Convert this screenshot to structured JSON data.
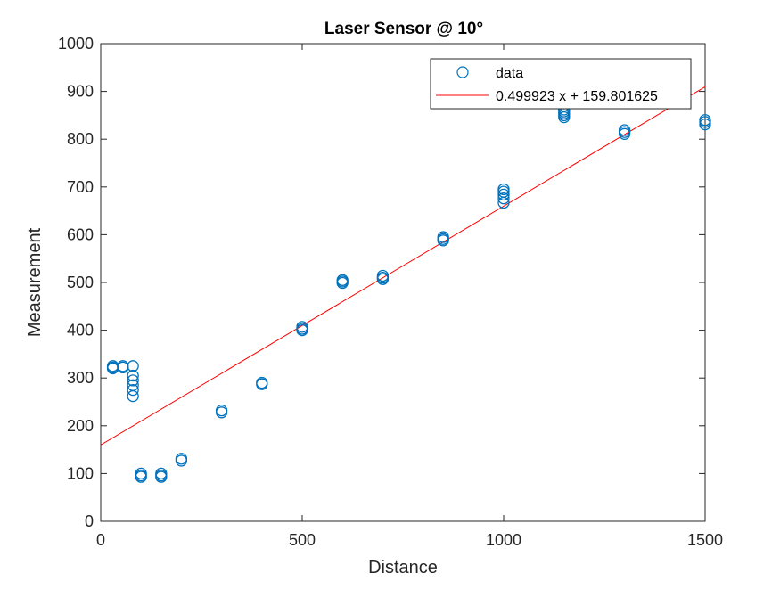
{
  "chart_data": {
    "type": "scatter",
    "title": "Laser Sensor @ 10°",
    "xlabel": "Distance",
    "ylabel": "Measurement",
    "xlim": [
      0,
      1500
    ],
    "ylim": [
      0,
      1000
    ],
    "xticks": [
      0,
      500,
      1000,
      1500
    ],
    "yticks": [
      0,
      100,
      200,
      300,
      400,
      500,
      600,
      700,
      800,
      900,
      1000
    ],
    "grid": false,
    "legend_position": "top-right",
    "series": [
      {
        "name": "data",
        "type": "scatter",
        "marker": "circle-open",
        "color": "#0072BD",
        "points": [
          [
            30,
            325
          ],
          [
            30,
            322
          ],
          [
            30,
            320
          ],
          [
            55,
            325
          ],
          [
            55,
            322
          ],
          [
            80,
            325
          ],
          [
            80,
            305
          ],
          [
            80,
            295
          ],
          [
            80,
            285
          ],
          [
            80,
            275
          ],
          [
            80,
            262
          ],
          [
            100,
            100
          ],
          [
            100,
            96
          ],
          [
            100,
            93
          ],
          [
            150,
            100
          ],
          [
            150,
            96
          ],
          [
            150,
            93
          ],
          [
            200,
            131
          ],
          [
            200,
            127
          ],
          [
            300,
            232
          ],
          [
            300,
            228
          ],
          [
            400,
            290
          ],
          [
            400,
            287
          ],
          [
            500,
            407
          ],
          [
            500,
            403
          ],
          [
            500,
            400
          ],
          [
            600,
            505
          ],
          [
            600,
            502
          ],
          [
            600,
            499
          ],
          [
            700,
            514
          ],
          [
            700,
            510
          ],
          [
            700,
            507
          ],
          [
            850,
            595
          ],
          [
            850,
            591
          ],
          [
            850,
            588
          ],
          [
            1000,
            695
          ],
          [
            1000,
            690
          ],
          [
            1000,
            684
          ],
          [
            1000,
            676
          ],
          [
            1000,
            667
          ],
          [
            1150,
            862
          ],
          [
            1150,
            858
          ],
          [
            1150,
            854
          ],
          [
            1150,
            850
          ],
          [
            1150,
            846
          ],
          [
            1300,
            819
          ],
          [
            1300,
            815
          ],
          [
            1300,
            811
          ],
          [
            1500,
            840
          ],
          [
            1500,
            836
          ],
          [
            1500,
            831
          ]
        ]
      },
      {
        "name": "0.499923 x + 159.801625",
        "type": "line",
        "color": "#FF0000",
        "slope": 0.499923,
        "intercept": 159.801625
      }
    ]
  }
}
